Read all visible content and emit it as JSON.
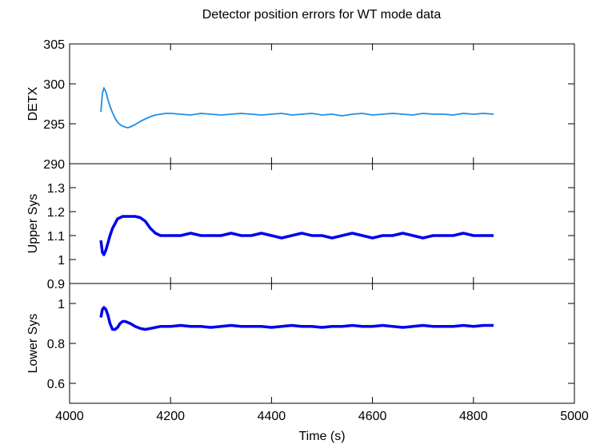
{
  "chart_data": [
    {
      "type": "line",
      "title": "Detector position errors for WT mode data",
      "ylabel": "DETX",
      "x": [
        4062,
        4065,
        4068,
        4072,
        4076,
        4080,
        4085,
        4090,
        4095,
        4100,
        4105,
        4110,
        4115,
        4120,
        4130,
        4140,
        4150,
        4160,
        4170,
        4180,
        4190,
        4200,
        4220,
        4240,
        4260,
        4280,
        4300,
        4320,
        4340,
        4360,
        4380,
        4400,
        4420,
        4440,
        4460,
        4480,
        4500,
        4520,
        4540,
        4560,
        4580,
        4600,
        4620,
        4640,
        4660,
        4680,
        4700,
        4720,
        4740,
        4760,
        4780,
        4800,
        4820,
        4840
      ],
      "series": [
        {
          "color": "#1e8fe6",
          "values": [
            296.5,
            298.8,
            299.5,
            299.0,
            298.0,
            297.2,
            296.4,
            295.7,
            295.2,
            294.9,
            294.7,
            294.6,
            294.5,
            294.6,
            294.9,
            295.3,
            295.6,
            295.9,
            296.1,
            296.2,
            296.3,
            296.3,
            296.2,
            296.1,
            296.3,
            296.2,
            296.1,
            296.2,
            296.3,
            296.2,
            296.1,
            296.2,
            296.3,
            296.1,
            296.2,
            296.3,
            296.1,
            296.2,
            296.0,
            296.2,
            296.3,
            296.1,
            296.2,
            296.3,
            296.2,
            296.1,
            296.3,
            296.2,
            296.2,
            296.1,
            296.3,
            296.2,
            296.3,
            296.2
          ]
        }
      ],
      "xlim": [
        4000,
        5000
      ],
      "ylim": [
        290,
        305
      ],
      "yticks": [
        290,
        295,
        300,
        305
      ]
    },
    {
      "type": "line",
      "ylabel": "Upper Sys",
      "x": [
        4062,
        4065,
        4068,
        4072,
        4076,
        4080,
        4085,
        4090,
        4095,
        4100,
        4105,
        4110,
        4115,
        4120,
        4130,
        4140,
        4150,
        4160,
        4170,
        4180,
        4190,
        4200,
        4220,
        4240,
        4260,
        4280,
        4300,
        4320,
        4340,
        4360,
        4380,
        4400,
        4420,
        4440,
        4460,
        4480,
        4500,
        4520,
        4540,
        4560,
        4580,
        4600,
        4620,
        4640,
        4660,
        4680,
        4700,
        4720,
        4740,
        4760,
        4780,
        4800,
        4820,
        4840
      ],
      "series": [
        {
          "color": "#0000ee",
          "values": [
            1.08,
            1.03,
            1.02,
            1.04,
            1.07,
            1.1,
            1.13,
            1.15,
            1.17,
            1.175,
            1.18,
            1.18,
            1.18,
            1.18,
            1.18,
            1.175,
            1.16,
            1.13,
            1.11,
            1.1,
            1.1,
            1.1,
            1.1,
            1.11,
            1.1,
            1.1,
            1.1,
            1.11,
            1.1,
            1.1,
            1.11,
            1.1,
            1.09,
            1.1,
            1.11,
            1.1,
            1.1,
            1.09,
            1.1,
            1.11,
            1.1,
            1.09,
            1.1,
            1.1,
            1.11,
            1.1,
            1.09,
            1.1,
            1.1,
            1.1,
            1.11,
            1.1,
            1.1,
            1.1
          ]
        }
      ],
      "xlim": [
        4000,
        5000
      ],
      "ylim": [
        0.9,
        1.4
      ],
      "yticks": [
        {
          "value": 0.9,
          "label": "0.9"
        },
        1,
        {
          "value": 1.1,
          "label": "1.1"
        },
        {
          "value": 1.2,
          "label": "1.2"
        },
        {
          "value": 1.3,
          "label": "1.3"
        }
      ]
    },
    {
      "type": "line",
      "ylabel": "Lower Sys",
      "xlabel": "Time (s)",
      "x": [
        4062,
        4065,
        4068,
        4072,
        4076,
        4080,
        4085,
        4090,
        4095,
        4100,
        4105,
        4110,
        4115,
        4120,
        4130,
        4140,
        4150,
        4160,
        4170,
        4180,
        4190,
        4200,
        4220,
        4240,
        4260,
        4280,
        4300,
        4320,
        4340,
        4360,
        4380,
        4400,
        4420,
        4440,
        4460,
        4480,
        4500,
        4520,
        4540,
        4560,
        4580,
        4600,
        4620,
        4640,
        4660,
        4680,
        4700,
        4720,
        4740,
        4760,
        4780,
        4800,
        4820,
        4840
      ],
      "series": [
        {
          "color": "#0000ee",
          "values": [
            0.93,
            0.97,
            0.98,
            0.97,
            0.94,
            0.9,
            0.87,
            0.87,
            0.88,
            0.9,
            0.91,
            0.91,
            0.905,
            0.9,
            0.885,
            0.875,
            0.87,
            0.875,
            0.88,
            0.885,
            0.885,
            0.885,
            0.89,
            0.885,
            0.885,
            0.88,
            0.885,
            0.89,
            0.885,
            0.885,
            0.885,
            0.88,
            0.885,
            0.89,
            0.885,
            0.885,
            0.88,
            0.885,
            0.885,
            0.89,
            0.885,
            0.885,
            0.89,
            0.885,
            0.88,
            0.885,
            0.89,
            0.885,
            0.885,
            0.885,
            0.89,
            0.885,
            0.89,
            0.89
          ]
        }
      ],
      "xlim": [
        4000,
        5000
      ],
      "xticks": [
        4000,
        4200,
        4400,
        4600,
        4800,
        5000
      ],
      "ylim": [
        0.5,
        1.1
      ],
      "yticks": [
        0.6,
        0.8,
        1
      ]
    }
  ]
}
